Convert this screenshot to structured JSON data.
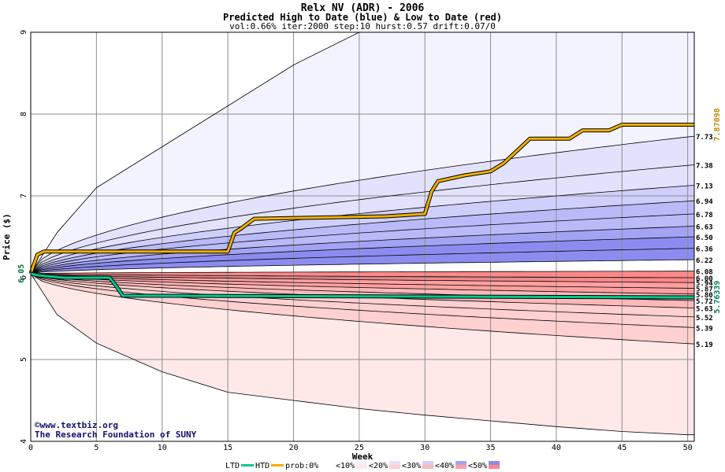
{
  "chart_data": {
    "type": "line",
    "title": "Relx NV (ADR) - 2006",
    "subtitle": "Predicted High to Date (blue) &  Low to Date (red)",
    "params": "vol:0.66% iter:2000 step:10 hurst:0.57 drift:0.07/0",
    "xlabel": "Week",
    "ylabel": "Price ($)",
    "xlim": [
      0,
      50.5
    ],
    "ylim": [
      4,
      9
    ],
    "x_ticks": [
      0,
      5,
      10,
      15,
      20,
      25,
      30,
      35,
      40,
      45,
      50
    ],
    "y_ticks": [
      4,
      5,
      6,
      7,
      8,
      9
    ],
    "start_price": "6.05",
    "final_high_label": "7.87098",
    "final_low_label": "5.76339",
    "high_quantile_labels": [
      "7.73",
      "7.38",
      "7.13",
      "6.94",
      "6.78",
      "6.63",
      "6.50",
      "6.36",
      "6.22"
    ],
    "low_quantile_labels": [
      "6.08",
      "6.00",
      "5.94",
      "5.87",
      "5.80",
      "5.72",
      "5.63",
      "5.52",
      "5.39",
      "5.19"
    ],
    "high_quantiles_end": [
      7.73,
      7.38,
      7.13,
      6.94,
      6.78,
      6.63,
      6.5,
      6.36,
      6.22
    ],
    "low_quantiles_end": [
      6.08,
      6.0,
      5.94,
      5.87,
      5.8,
      5.72,
      5.63,
      5.52,
      5.39,
      5.19
    ],
    "high_envelope": {
      "x": [
        0,
        2,
        5,
        10,
        15,
        20,
        25,
        30,
        35,
        40,
        45,
        50
      ],
      "y": [
        6.05,
        6.55,
        7.1,
        7.6,
        8.1,
        8.6,
        9.0,
        9.0,
        9.0,
        9.0,
        9.0,
        9.0
      ]
    },
    "low_envelope": {
      "x": [
        0,
        2,
        5,
        10,
        15,
        20,
        25,
        30,
        35,
        40,
        45,
        50
      ],
      "y": [
        6.05,
        5.55,
        5.2,
        4.85,
        4.6,
        4.5,
        4.4,
        4.32,
        4.25,
        4.18,
        4.12,
        4.08
      ]
    },
    "series": [
      {
        "name": "HTD",
        "color": "#f0b000",
        "x": [
          0,
          0.5,
          1.0,
          15.0,
          15.5,
          16.0,
          17.0,
          27.0,
          30.0,
          30.5,
          31.0,
          33.0,
          35.0,
          36.0,
          37.0,
          38.0,
          41.0,
          42.0,
          44.0,
          45.0,
          50.5
        ],
        "y": [
          6.05,
          6.28,
          6.32,
          6.32,
          6.55,
          6.6,
          6.72,
          6.75,
          6.78,
          7.05,
          7.18,
          7.25,
          7.3,
          7.4,
          7.55,
          7.7,
          7.7,
          7.8,
          7.8,
          7.87,
          7.87
        ]
      },
      {
        "name": "LTD",
        "color": "#00c890",
        "x": [
          0,
          0.5,
          2.5,
          6.0,
          6.5,
          7.0,
          50.5
        ],
        "y": [
          6.05,
          6.03,
          6.0,
          6.0,
          5.9,
          5.78,
          5.76
        ]
      }
    ],
    "legend": {
      "items": [
        "LTD",
        "HTD",
        "prob:0%",
        "<10%",
        "<20%",
        "<30%",
        "<40%",
        "<50%"
      ],
      "placement": "bottom"
    },
    "grid": true,
    "colors": {
      "blue_bands": [
        "#f3f3ff",
        "#e2e2fd",
        "#cfcffb",
        "#babaf8",
        "#a3a3f4",
        "#8c8cf0"
      ],
      "red_bands": [
        "#ffe8e8",
        "#ffd0d0",
        "#ffb8b8",
        "#ffa0a0",
        "#ff8888"
      ]
    }
  },
  "watermark": {
    "line1": "www.textbiz.org",
    "line2": "The Research Foundation of SUNY"
  }
}
